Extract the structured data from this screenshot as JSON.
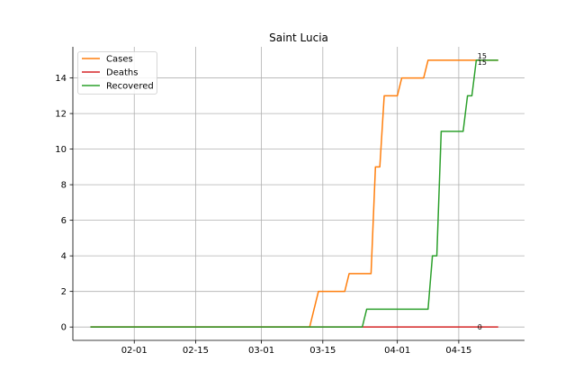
{
  "chart_data": {
    "type": "line",
    "title": "Saint Lucia",
    "xlabel": "",
    "ylabel": "",
    "x_tick_labels": [
      "02-01",
      "02-15",
      "03-01",
      "03-15",
      "04-01",
      "04-15"
    ],
    "x_tick_dates": [
      "2020-02-01",
      "2020-02-15",
      "2020-03-01",
      "2020-03-15",
      "2020-04-01",
      "2020-04-15"
    ],
    "xlim": [
      "2020-01-18",
      "2020-04-30"
    ],
    "yticks": [
      0,
      2,
      4,
      6,
      8,
      10,
      12,
      14
    ],
    "ylim": [
      -0.75,
      15.75
    ],
    "grid": true,
    "legend_position": "upper-left",
    "series": [
      {
        "name": "Cases",
        "color": "#ff7f0e",
        "points": [
          [
            "2020-01-22",
            0
          ],
          [
            "2020-03-12",
            0
          ],
          [
            "2020-03-14",
            2
          ],
          [
            "2020-03-20",
            2
          ],
          [
            "2020-03-21",
            3
          ],
          [
            "2020-03-26",
            3
          ],
          [
            "2020-03-27",
            9
          ],
          [
            "2020-03-28",
            9
          ],
          [
            "2020-03-29",
            13
          ],
          [
            "2020-04-01",
            13
          ],
          [
            "2020-04-02",
            14
          ],
          [
            "2020-04-07",
            14
          ],
          [
            "2020-04-08",
            15
          ],
          [
            "2020-04-24",
            15
          ]
        ],
        "end_label": "15"
      },
      {
        "name": "Deaths",
        "color": "#d62728",
        "points": [
          [
            "2020-01-22",
            0
          ],
          [
            "2020-04-24",
            0
          ]
        ],
        "end_label": "0"
      },
      {
        "name": "Recovered",
        "color": "#2ca02c",
        "points": [
          [
            "2020-01-22",
            0
          ],
          [
            "2020-03-24",
            0
          ],
          [
            "2020-03-25",
            1
          ],
          [
            "2020-04-08",
            1
          ],
          [
            "2020-04-09",
            4
          ],
          [
            "2020-04-10",
            4
          ],
          [
            "2020-04-11",
            11
          ],
          [
            "2020-04-16",
            11
          ],
          [
            "2020-04-17",
            13
          ],
          [
            "2020-04-18",
            13
          ],
          [
            "2020-04-19",
            15
          ],
          [
            "2020-04-24",
            15
          ]
        ],
        "end_label": "15"
      }
    ]
  }
}
